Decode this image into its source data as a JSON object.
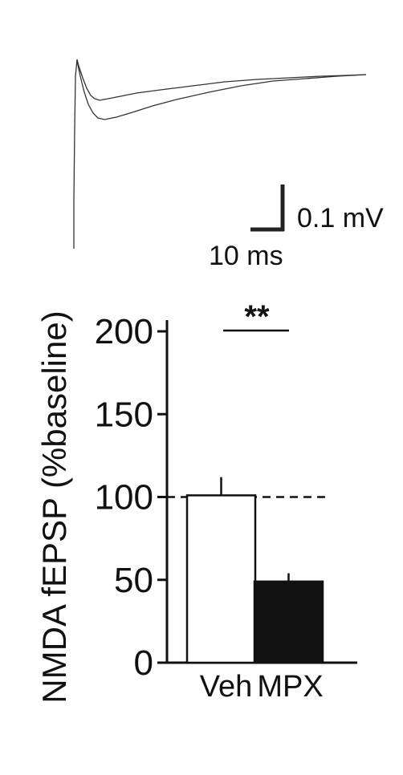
{
  "trace_panel": {
    "scale_bar": {
      "amplitude_label": "0.1 mV",
      "time_label": "10 ms"
    }
  },
  "chart_data": {
    "type": "bar",
    "ylabel": "NMDA fEPSP (%baseline)",
    "xlabel": "",
    "categories": [
      "Veh",
      "MPX"
    ],
    "values": [
      101,
      49
    ],
    "errors": [
      11,
      5
    ],
    "bar_colors": [
      "#ffffff",
      "#111111"
    ],
    "ylim": [
      0,
      200
    ],
    "yticks": [
      0,
      50,
      100,
      150,
      200
    ],
    "ytick_labels": [
      "0",
      "50",
      "100",
      "150",
      "200"
    ],
    "reference_line": 100,
    "significance": {
      "label": "**",
      "between": [
        "Veh",
        "MPX"
      ]
    }
  }
}
